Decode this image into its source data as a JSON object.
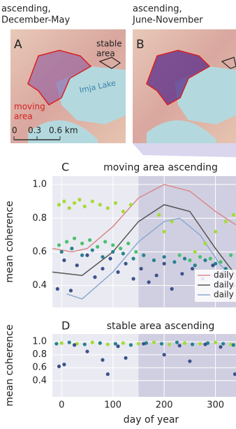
{
  "maps": [
    {
      "title": [
        "ascending,",
        "December-May"
      ],
      "letter": "A",
      "stable_label": [
        "stable",
        "area"
      ],
      "moving_label": [
        "moving",
        "area"
      ],
      "lake_label": "Imja Lake",
      "scale_labels": [
        "0",
        "0.3",
        "0.6 km"
      ]
    },
    {
      "title": [
        "ascending,",
        "June-November"
      ],
      "letter": "B"
    }
  ],
  "chart_data": [
    {
      "type": "scatter",
      "letter": "C",
      "title": "moving area ascending",
      "ylabel": "mean coherence",
      "xlim": [
        -18,
        340
      ],
      "ylim": [
        0.27,
        1.05
      ],
      "xticks": [
        0,
        100,
        200,
        300
      ],
      "yticks": [
        0.4,
        0.6,
        0.8,
        {
          "value": 1.0,
          "label": "1.0"
        }
      ],
      "shaded_xrange": [
        150,
        340
      ],
      "legend": "lower right",
      "grid": true,
      "series": [
        {
          "color": "#a5db36",
          "x": [
            -5,
            5,
            15,
            25,
            35,
            45,
            60,
            75,
            90,
            105,
            120,
            135,
            190,
            200,
            215,
            260,
            280,
            300,
            320,
            335
          ],
          "y": [
            0.88,
            0.9,
            0.86,
            0.89,
            0.91,
            0.87,
            0.9,
            0.88,
            0.86,
            0.89,
            0.84,
            0.88,
            0.82,
            0.72,
            0.78,
            0.6,
            0.65,
            0.72,
            0.78,
            0.82
          ]
        },
        {
          "color": "#4ac16d",
          "x": [
            -5,
            10,
            25,
            40,
            55,
            70,
            85,
            100,
            115,
            130,
            145,
            230,
            250,
            270,
            290,
            310,
            330
          ],
          "y": [
            0.64,
            0.66,
            0.68,
            0.65,
            0.67,
            0.63,
            0.66,
            0.64,
            0.62,
            0.65,
            0.6,
            0.58,
            0.55,
            0.57,
            0.56,
            0.54,
            0.58
          ]
        },
        {
          "color": "#26828e",
          "x": [
            0,
            20,
            40,
            60,
            80,
            100,
            120,
            140,
            160,
            180,
            200,
            220,
            240,
            260,
            280,
            300,
            320
          ],
          "y": [
            0.6,
            0.62,
            0.58,
            0.61,
            0.57,
            0.6,
            0.59,
            0.56,
            0.58,
            0.55,
            0.57,
            0.54,
            0.56,
            0.52,
            0.55,
            0.53,
            0.5
          ]
        },
        {
          "color": "#3b528b",
          "x": [
            -8,
            5,
            18,
            30,
            50,
            65,
            80,
            95,
            110,
            125,
            140,
            155,
            170,
            185,
            200,
            215,
            235,
            255,
            275,
            295,
            315,
            335
          ],
          "y": [
            0.38,
            0.55,
            0.37,
            0.52,
            0.58,
            0.45,
            0.5,
            0.56,
            0.48,
            0.53,
            0.44,
            0.5,
            0.42,
            0.46,
            0.53,
            0.38,
            0.47,
            0.5,
            0.44,
            0.52,
            0.48,
            0.4
          ]
        }
      ],
      "lines": [
        {
          "name": "daily",
          "color": "#d88a8a",
          "x": [
            -18,
            20,
            50,
            100,
            150,
            200,
            250,
            300,
            340
          ],
          "y": [
            0.62,
            0.6,
            0.62,
            0.75,
            0.92,
            1.0,
            0.96,
            0.84,
            0.76
          ]
        },
        {
          "name": "daily",
          "color": "#555555",
          "x": [
            -18,
            10,
            40,
            100,
            150,
            200,
            250,
            300,
            340
          ],
          "y": [
            0.48,
            0.47,
            0.46,
            0.6,
            0.78,
            0.88,
            0.84,
            0.62,
            0.46
          ]
        },
        {
          "name": "daily",
          "color": "#8aa9d0",
          "x": [
            10,
            40,
            100,
            150,
            200,
            230,
            270,
            310,
            340
          ],
          "y": [
            0.35,
            0.32,
            0.48,
            0.66,
            0.78,
            0.8,
            0.7,
            0.52,
            0.44
          ]
        }
      ]
    },
    {
      "type": "scatter",
      "letter": "D",
      "title": "stable area ascending",
      "ylabel": "mean coherence",
      "xlabel": "day of year",
      "xlim": [
        -18,
        340
      ],
      "ylim": [
        0.15,
        1.12
      ],
      "xticks": [
        0,
        100,
        200,
        300
      ],
      "yticks": [
        0.4,
        0.6,
        0.8,
        {
          "value": 1.0,
          "label": "1.0"
        }
      ],
      "shaded_xrange": [
        150,
        340
      ],
      "grid": true,
      "series": [
        {
          "color": "#a5db36",
          "x": [
            0,
            30,
            60,
            90,
            120,
            150,
            180,
            210,
            240,
            270,
            300,
            330
          ],
          "y": [
            0.98,
            0.97,
            0.99,
            0.96,
            0.98,
            0.97,
            0.99,
            0.96,
            0.98,
            0.97,
            0.99,
            0.96
          ]
        },
        {
          "color": "#26828e",
          "x": [
            -10,
            15,
            45,
            75,
            105,
            135,
            165,
            195,
            225,
            255,
            285,
            315,
            335
          ],
          "y": [
            0.97,
            0.99,
            0.96,
            0.98,
            0.97,
            0.95,
            0.98,
            0.97,
            0.99,
            0.96,
            0.98,
            0.97,
            0.95
          ]
        },
        {
          "color": "#3b528b",
          "x": [
            -5,
            5,
            25,
            50,
            80,
            90,
            110,
            125,
            160,
            200,
            230,
            250,
            280,
            310,
            338
          ],
          "y": [
            0.62,
            0.65,
            0.95,
            0.85,
            0.72,
            0.5,
            0.93,
            0.75,
            0.97,
            0.8,
            0.94,
            0.7,
            0.96,
            0.92,
            0.5
          ]
        }
      ]
    }
  ]
}
